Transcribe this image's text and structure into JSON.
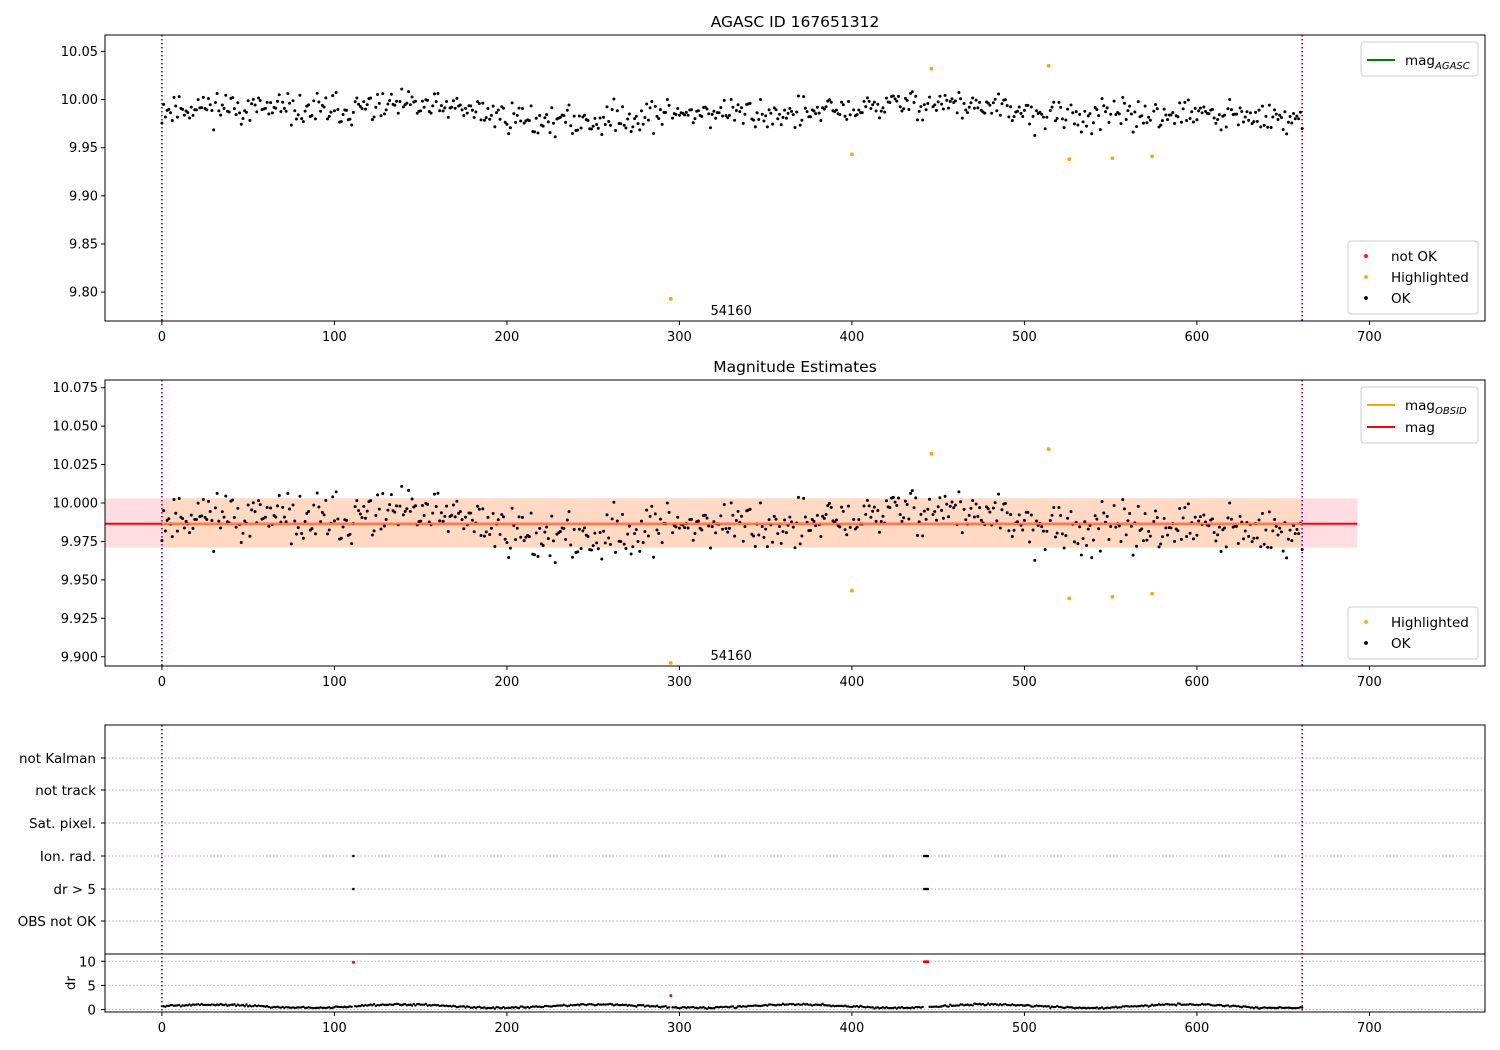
{
  "chart_data": [
    {
      "type": "scatter",
      "title": "AGASC ID 167651312",
      "xlim": [
        -33,
        767
      ],
      "ylim": [
        9.77,
        10.067
      ],
      "xticks": [
        0,
        100,
        200,
        300,
        400,
        500,
        600,
        700
      ],
      "yticks": [
        9.8,
        9.85,
        9.9,
        9.95,
        10.0,
        10.05
      ],
      "ytick_decimals": 2,
      "vlines": [
        0,
        661
      ],
      "annotation": {
        "text": "54160",
        "x": 330,
        "y": 9.776
      },
      "legend_lines": {
        "placement": "top-right",
        "entries": [
          {
            "name": "mag",
            "sub": "AGASC",
            "color": "#008000"
          }
        ]
      },
      "legend_points": {
        "placement": "bottom-right",
        "entries": [
          {
            "name": "not OK",
            "color": "#ff0000"
          },
          {
            "name": "Highlighted",
            "color": "#ffa500"
          },
          {
            "name": "OK",
            "color": "#000000"
          }
        ]
      },
      "ok_series": {
        "x_start": 0,
        "x_end": 661,
        "mean": 9.9865,
        "spread": 0.0145,
        "seed": 11
      },
      "highlighted": [
        {
          "x": 295,
          "y": 9.793
        },
        {
          "x": 400,
          "y": 9.943
        },
        {
          "x": 446,
          "y": 10.032
        },
        {
          "x": 514,
          "y": 10.035
        },
        {
          "x": 526,
          "y": 9.938
        },
        {
          "x": 551,
          "y": 9.939
        },
        {
          "x": 574,
          "y": 9.941
        }
      ]
    },
    {
      "type": "scatter",
      "title": "Magnitude Estimates",
      "xlim": [
        -33,
        767
      ],
      "ylim": [
        9.894,
        10.08
      ],
      "xticks": [
        0,
        100,
        200,
        300,
        400,
        500,
        600,
        700
      ],
      "yticks": [
        9.9,
        9.925,
        9.95,
        9.975,
        10.0,
        10.025,
        10.05,
        10.075
      ],
      "ytick_decimals": 3,
      "vlines": [
        0,
        661
      ],
      "annotation": {
        "text": "54160",
        "x": 330,
        "y": 9.898
      },
      "band_outer": {
        "x": [
          -33,
          693
        ],
        "y": [
          9.971,
          10.003
        ],
        "color": "#ffdde3"
      },
      "band_inner": {
        "x": [
          0,
          661
        ],
        "y": [
          9.971,
          10.003
        ],
        "color": "#ffd9c4"
      },
      "mag_line": {
        "x": [
          -33,
          693
        ],
        "y": 9.9865,
        "color": "#ff0000"
      },
      "mag_obsid_line": {
        "x": [
          0,
          661
        ],
        "y": 9.9865,
        "color": "#ffa500"
      },
      "legend_lines": {
        "placement": "top-right",
        "entries": [
          {
            "name": "mag",
            "sub": "OBSID",
            "color": "#ffa500"
          },
          {
            "name": "mag",
            "sub": "",
            "color": "#ff0000"
          }
        ]
      },
      "legend_points": {
        "placement": "bottom-right",
        "entries": [
          {
            "name": "Highlighted",
            "color": "#ffa500"
          },
          {
            "name": "OK",
            "color": "#000000"
          }
        ]
      },
      "ok_series": {
        "x_start": 0,
        "x_end": 661,
        "mean": 9.9865,
        "spread": 0.0145,
        "seed": 11
      },
      "highlighted": [
        {
          "x": 295,
          "y": 9.896
        },
        {
          "x": 400,
          "y": 9.943
        },
        {
          "x": 446,
          "y": 10.032
        },
        {
          "x": 514,
          "y": 10.035
        },
        {
          "x": 526,
          "y": 9.938
        },
        {
          "x": 551,
          "y": 9.939
        },
        {
          "x": 574,
          "y": 9.941
        }
      ]
    },
    {
      "type": "scatter",
      "title": "",
      "xlim": [
        -33,
        767
      ],
      "xticks": [
        0,
        100,
        200,
        300,
        400,
        500,
        600,
        700
      ],
      "vlines": [
        0,
        661
      ],
      "flag_rows": [
        "not Kalman",
        "not track",
        "Sat. pixel.",
        "Ion. rad.",
        "dr > 5",
        "OBS not OK"
      ],
      "flag_points": [
        {
          "row": "Ion. rad.",
          "x": [
            111,
            442,
            443,
            444
          ]
        },
        {
          "row": "dr > 5",
          "x": [
            111,
            442,
            443,
            444
          ]
        }
      ],
      "dr_panel": {
        "ylabel": "dr",
        "ylim": [
          -0.5,
          11.5
        ],
        "yticks": [
          0,
          5,
          10
        ],
        "series": {
          "x_start": 0,
          "x_end": 661,
          "base": 0.7,
          "spread": 0.25,
          "seed": 5
        },
        "red_points": [
          {
            "x": 111,
            "y": 9.8
          },
          {
            "x": 295,
            "y": 2.9
          },
          {
            "x": 442,
            "y": 9.9
          },
          {
            "x": 443,
            "y": 9.9
          },
          {
            "x": 444,
            "y": 9.9
          }
        ]
      }
    }
  ]
}
